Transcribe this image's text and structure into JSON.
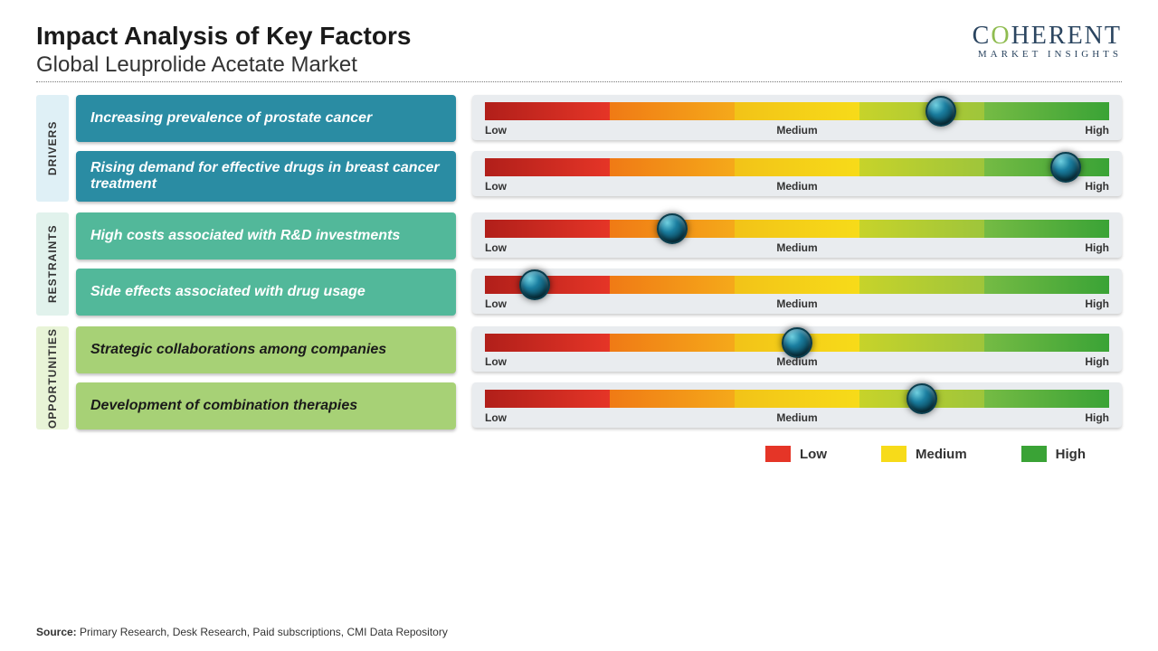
{
  "title": "Impact Analysis of Key Factors",
  "subtitle": "Global Leuprolide Acetate Market",
  "logo": {
    "line1_pre": "C",
    "line1_o": "O",
    "line1_post": "HERENT",
    "line2": "MARKET INSIGHTS"
  },
  "sections": [
    {
      "label": "DRIVERS",
      "tab_bg": "#dff0f6",
      "box_bg": "#2a8ca3",
      "box_fg": "#ffffff",
      "rows": [
        {
          "text": "Increasing prevalence of prostate cancer",
          "knob_pct": 73
        },
        {
          "text": "Rising demand for effective drugs in breast cancer treatment",
          "knob_pct": 93
        }
      ]
    },
    {
      "label": "RESTRAINTS",
      "tab_bg": "#e1f2ec",
      "box_bg": "#52b89a",
      "box_fg": "#ffffff",
      "rows": [
        {
          "text": "High costs associated with R&D investments",
          "knob_pct": 30
        },
        {
          "text": "Side effects associated with drug usage",
          "knob_pct": 8
        }
      ]
    },
    {
      "label": "OPPORTUNITIES",
      "tab_bg": "#e8f4d7",
      "box_bg": "#a7d176",
      "box_fg": "#1a1a1a",
      "rows": [
        {
          "text": "Strategic collaborations among companies",
          "knob_pct": 50
        },
        {
          "text": "Development of combination therapies",
          "knob_pct": 70
        }
      ]
    }
  ],
  "scale_labels": {
    "low": "Low",
    "medium": "Medium",
    "high": "High"
  },
  "legend": [
    {
      "label": "Low",
      "color": "#e53527"
    },
    {
      "label": "Medium",
      "color": "#f7db19"
    },
    {
      "label": "High",
      "color": "#3aa336"
    }
  ],
  "source_label": "Source:",
  "source_text": " Primary Research, Desk Research, Paid subscriptions, CMI Data Repository"
}
